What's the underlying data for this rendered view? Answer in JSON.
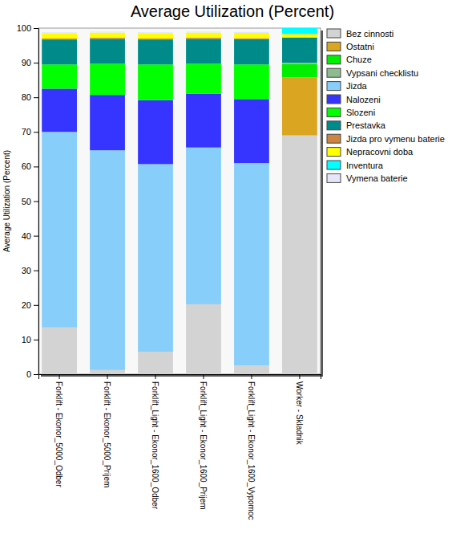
{
  "chart_data": {
    "type": "bar",
    "stacked": true,
    "title": "Average Utilization (Percent)",
    "y_label": "Average Utilization (Percent)",
    "categories": [
      "Forklift - Ekonor_5000_Odber",
      "Forklift - Ekonor_5000_Prijem",
      "Forklift_Light - Ekonor_1600_Odber",
      "Forklift_Light - Ekonor_1600_Prijem",
      "Forklift_Light - Ekonor_1600_Vypomoc",
      "Worker - Skladnik"
    ],
    "ylim": [
      0,
      100
    ],
    "yticks": [
      0,
      10,
      20,
      30,
      40,
      50,
      60,
      70,
      80,
      90,
      100
    ],
    "grid": false,
    "legend": "right",
    "series": [
      {
        "name": "Bez cinnosti",
        "color": "#d3d3d3",
        "values": [
          13.5,
          1.2,
          6.5,
          20.2,
          2.5,
          69
        ]
      },
      {
        "name": "Ostatni",
        "color": "#daa520",
        "values": [
          0,
          0,
          0,
          0,
          0,
          16.8
        ]
      },
      {
        "name": "Chuze",
        "color": "#00ee00",
        "values": [
          0,
          0,
          0,
          0,
          0,
          3.8
        ]
      },
      {
        "name": "Vypsani checklistu",
        "color": "#8fbc8f",
        "values": [
          0,
          0,
          0,
          0,
          0,
          0.4
        ]
      },
      {
        "name": "Jizda",
        "color": "#87cefa",
        "values": [
          56.5,
          63.5,
          54.2,
          45.3,
          58.5,
          0
        ]
      },
      {
        "name": "Nalozeni",
        "color": "#3535ff",
        "values": [
          12.5,
          16,
          18.5,
          15.5,
          18.5,
          0
        ]
      },
      {
        "name": "Slozeni",
        "color": "#00ff00",
        "values": [
          7,
          9,
          10.3,
          8.7,
          10,
          0
        ]
      },
      {
        "name": "Prestavka",
        "color": "#008b8b",
        "values": [
          7.2,
          7.2,
          7.2,
          7.2,
          7.3,
          7.3
        ]
      },
      {
        "name": "Jizda pro vymenu baterie",
        "color": "#cd853f",
        "values": [
          0.3,
          0.3,
          0.3,
          0.3,
          0.3,
          0
        ]
      },
      {
        "name": "Nepracovni doba",
        "color": "#ffff00",
        "values": [
          1.5,
          1.5,
          1.5,
          1.5,
          1.5,
          1
        ]
      },
      {
        "name": "Inventura",
        "color": "#00ffff",
        "values": [
          0,
          0,
          0,
          0,
          0,
          1.7
        ]
      },
      {
        "name": "Vymena baterie",
        "color": "#e6e6fa",
        "values": [
          0.3,
          0.3,
          0.3,
          0.3,
          0.3,
          0
        ]
      }
    ]
  }
}
